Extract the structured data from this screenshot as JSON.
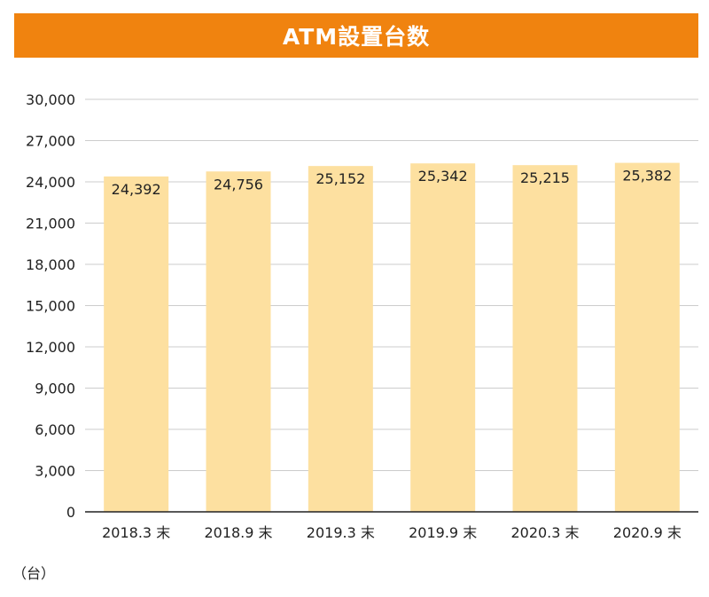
{
  "colors": {
    "banner": "#f0830f",
    "bar": "#fde0a0",
    "grid": "#cccccc",
    "axis": "#222222",
    "text": "#222222"
  },
  "chart_data": {
    "type": "bar",
    "title": "ATM設置台数",
    "categories": [
      "2018.3 末",
      "2018.9 末",
      "2019.3 末",
      "2019.9 末",
      "2020.3 末",
      "2020.9 末"
    ],
    "values": [
      24392,
      24756,
      25152,
      25342,
      25215,
      25382
    ],
    "value_labels": [
      "24,392",
      "24,756",
      "25,152",
      "25,342",
      "25,215",
      "25,382"
    ],
    "yticks": [
      0,
      3000,
      6000,
      9000,
      12000,
      15000,
      18000,
      21000,
      24000,
      27000,
      30000
    ],
    "ytick_labels": [
      "0",
      "3,000",
      "6,000",
      "9,000",
      "12,000",
      "15,000",
      "18,000",
      "21,000",
      "24,000",
      "27,000",
      "30,000"
    ],
    "ylim": [
      0,
      30000
    ],
    "unit": "（台）",
    "grid": true,
    "legend": "none"
  }
}
